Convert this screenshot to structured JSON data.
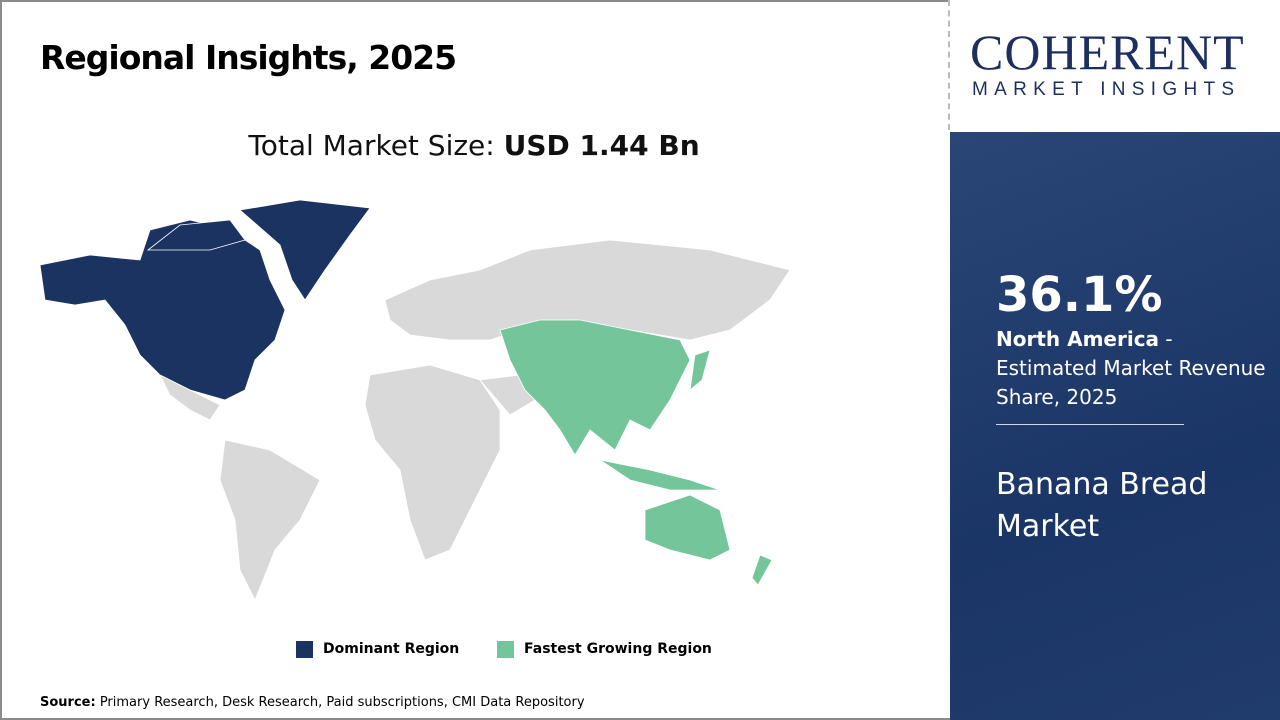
{
  "header": {
    "title": "Regional Insights, 2025",
    "total_label": "Total Market Size: ",
    "total_value": "USD 1.44 Bn"
  },
  "logo": {
    "name": "COHERENT",
    "tagline": "MARKET INSIGHTS"
  },
  "panel": {
    "percent": "36.1%",
    "region": "North America",
    "desc": " - Estimated Market Revenue Share, 2025",
    "market": "Banana Bread Market"
  },
  "legend": [
    {
      "label": "Dominant Region",
      "color": "#1a3360"
    },
    {
      "label": "Fastest Growing Region",
      "color": "#74c69a"
    }
  ],
  "colors": {
    "other": "#d9d9d9"
  },
  "source": {
    "label": "Source:",
    "text": " Primary Research, Desk Research, Paid subscriptions, CMI Data Repository"
  }
}
